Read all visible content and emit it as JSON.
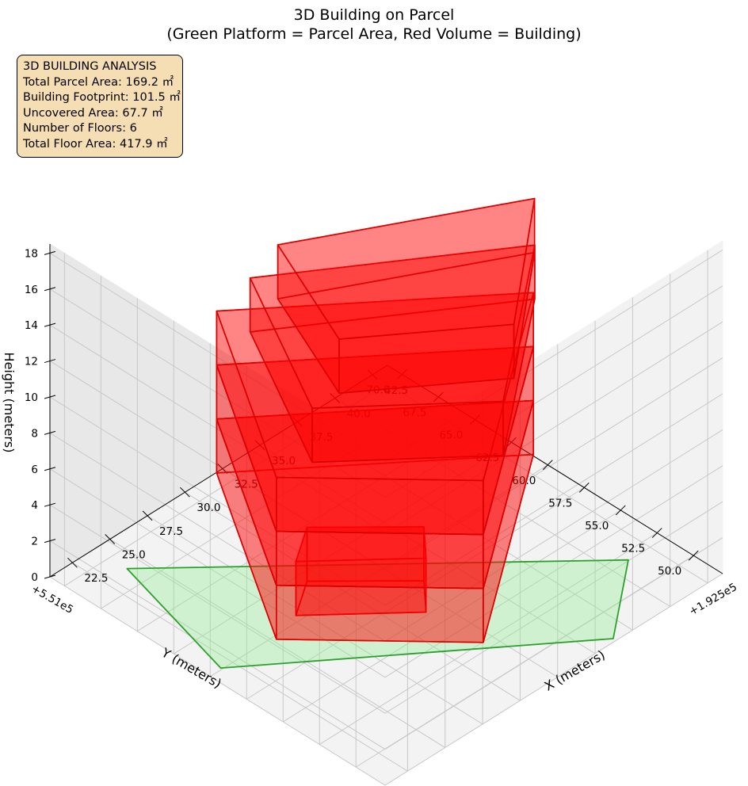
{
  "title": {
    "line1": "3D Building on Parcel",
    "line2": "(Green Platform = Parcel Area, Red Volume = Building)"
  },
  "info_box": {
    "lines": [
      "3D BUILDING ANALYSIS",
      "Total Parcel Area: 169.2 ㎡",
      "Building Footprint: 101.5 ㎡",
      "Uncovered Area: 67.7 ㎡",
      "Number of Floors: 6",
      "Total Floor Area: 417.9 ㎡"
    ]
  },
  "chart_data": {
    "type": "3d-boxes",
    "title": "3D Building on Parcel\n(Green Platform = Parcel Area, Red Volume = Building)",
    "xlabel": "X (meters)",
    "ylabel": "Y (meters)",
    "zlabel": "Height (meters)",
    "x_offset_label": "+1.925e5",
    "y_offset_label": "+5.51e5",
    "x_ticks": [
      "22.5",
      "25.0",
      "27.5",
      "30.0",
      "32.5",
      "35.0",
      "37.5",
      "40.0",
      "42.5"
    ],
    "y_ticks": [
      "50.0",
      "52.5",
      "55.0",
      "57.5",
      "60.0",
      "62.5",
      "65.0",
      "67.5",
      "70.0"
    ],
    "z_ticks": [
      "0",
      "2",
      "4",
      "6",
      "8",
      "10",
      "12",
      "14",
      "16",
      "18"
    ],
    "xlim": [
      21.0,
      43.5
    ],
    "ylim": [
      48.0,
      71.0
    ],
    "zlim": [
      0,
      18.5
    ],
    "parcel": {
      "name": "Parcel Area",
      "color": "#2ca02c",
      "fill": "#90ee90",
      "polygon": [
        [
          24.0,
          68.8
        ],
        [
          41.1,
          52.0
        ],
        [
          36.4,
          48.2
        ],
        [
          21.8,
          60.1
        ]
      ]
    },
    "floors": [
      {
        "floor": 1,
        "color": "#ff0000",
        "footprint": [
          [
            29.3,
            61.9
          ],
          [
            33.2,
            57.9
          ],
          [
            31.6,
            56.1
          ],
          [
            27.1,
            60.4
          ]
        ],
        "z": [
          0,
          3
        ]
      },
      {
        "floor": 2,
        "color": "#ff0000",
        "footprint": [
          [
            29.2,
            68.0
          ],
          [
            40.7,
            58.1
          ],
          [
            29.0,
            49.5
          ],
          [
            22.3,
            56.8
          ]
        ],
        "z": [
          3,
          6
        ]
      },
      {
        "floor": 3,
        "color": "#ff0000",
        "footprint": [
          [
            29.2,
            68.0
          ],
          [
            40.7,
            58.1
          ],
          [
            29.0,
            49.5
          ],
          [
            22.3,
            56.8
          ]
        ],
        "z": [
          6,
          9
        ]
      },
      {
        "floor": 4,
        "color": "#ff0000",
        "footprint": [
          [
            29.2,
            68.0
          ],
          [
            40.7,
            58.1
          ],
          [
            29.0,
            49.5
          ],
          [
            22.3,
            56.8
          ]
        ],
        "z": [
          9,
          12
        ]
      },
      {
        "floor": 5,
        "color": "#ff0000",
        "footprint": [
          [
            29.2,
            65.7
          ],
          [
            40.4,
            57.7
          ],
          [
            31.0,
            50.2
          ],
          [
            24.3,
            56.4
          ]
        ],
        "z": [
          12,
          15
        ]
      },
      {
        "floor": 6,
        "color": "#ff0000",
        "footprint": [
          [
            29.0,
            63.6
          ],
          [
            40.0,
            57.3
          ],
          [
            32.6,
            51.1
          ],
          [
            26.0,
            56.3
          ]
        ],
        "z": [
          15,
          18
        ]
      }
    ],
    "grid": true,
    "view": {
      "elev": 25,
      "azim": 45
    }
  }
}
